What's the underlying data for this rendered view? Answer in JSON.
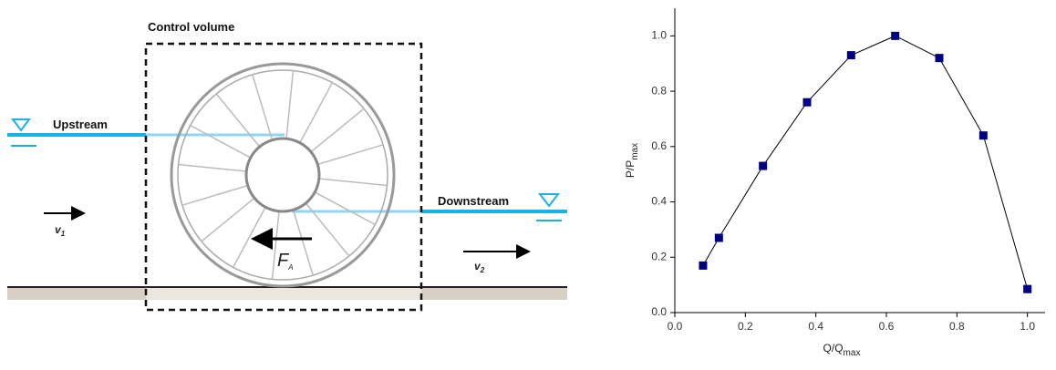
{
  "diagram": {
    "control_volume": "Control volume",
    "upstream": "Upstream",
    "downstream": "Downstream",
    "velocity_1": {
      "symbol": "v",
      "subscript": "1"
    },
    "velocity_2": {
      "symbol": "v",
      "subscript": "2"
    },
    "force": {
      "symbol": "F",
      "subscript": "A"
    }
  },
  "chart_data": {
    "type": "line",
    "x_label": {
      "text": "Q/Q",
      "subscript": "max"
    },
    "y_label": {
      "text": "P/P",
      "subscript": "max"
    },
    "x": [
      0.08,
      0.125,
      0.25,
      0.375,
      0.5,
      0.625,
      0.75,
      0.875,
      1.0
    ],
    "series": [
      {
        "color": "#000080",
        "values": [
          0.17,
          0.27,
          0.53,
          0.76,
          0.93,
          1.0,
          0.92,
          0.64,
          0.085
        ]
      }
    ],
    "xlim": [
      0,
      1.05
    ],
    "ylim": [
      0,
      1.1
    ],
    "xticks": [
      {
        "value": 0,
        "label": "0.0"
      },
      0.2,
      0.4,
      0.6,
      0.8,
      {
        "value": 1,
        "label": "1.0"
      }
    ],
    "yticks": [
      {
        "value": 0,
        "label": "0.0"
      },
      0.2,
      0.4,
      0.6,
      0.8,
      {
        "value": 1,
        "label": "1.0"
      }
    ],
    "line_color": "#000000",
    "marker": "square"
  }
}
